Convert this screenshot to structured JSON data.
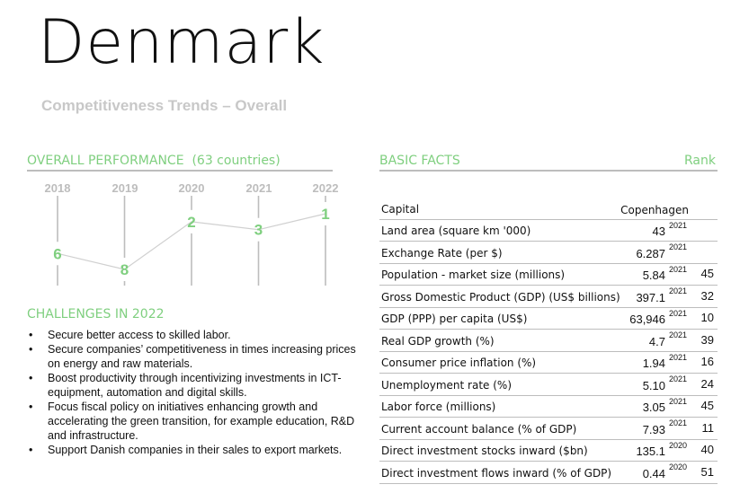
{
  "header": {
    "country": "Denmark",
    "subtitle": "Competitiveness Trends – Overall"
  },
  "overall": {
    "title": "OVERALL PERFORMANCE  (63 countries)"
  },
  "chart_data": {
    "type": "line",
    "x": [
      "2018",
      "2019",
      "2020",
      "2021",
      "2022"
    ],
    "series": [
      {
        "values": [
          6,
          8,
          2,
          3,
          1
        ]
      }
    ],
    "y_scale": "rank (1 at top, inverted)",
    "grid": "vertical lines per year",
    "color": "#7fcf7f"
  },
  "challenges": {
    "title": "CHALLENGES IN 2022",
    "items": [
      "Secure better access to skilled labor.",
      "Secure companies’ competitiveness in times increasing prices on energy and raw materials.",
      "Boost productivity through incentivizing investments in ICT-equipment, automation and digital skills.",
      "Focus fiscal policy on initiatives enhancing growth and accelerating the green transition, for example education, R&D and infrastructure.",
      "Support Danish companies in their sales to export markets."
    ]
  },
  "basic_facts": {
    "title": "BASIC FACTS",
    "rank_header": "Rank",
    "rows": [
      {
        "label": "Capital",
        "value": "Copenhagen",
        "year": "",
        "rank": ""
      },
      {
        "label": "Land area (square km '000)",
        "value": "43",
        "year": "2021",
        "rank": ""
      },
      {
        "label": "Exchange Rate (per $)",
        "value": "6.287",
        "year": "2021",
        "rank": ""
      },
      {
        "label": "Population - market size (millions)",
        "value": "5.84",
        "year": "2021",
        "rank": "45"
      },
      {
        "label": "Gross Domestic Product (GDP) (US$ billions)",
        "value": "397.1",
        "year": "2021",
        "rank": "32"
      },
      {
        "label": "GDP (PPP) per capita (US$)",
        "value": "63,946",
        "year": "2021",
        "rank": "10"
      },
      {
        "label": "Real GDP growth (%)",
        "value": "4.7",
        "year": "2021",
        "rank": "39"
      },
      {
        "label": "Consumer price inflation (%)",
        "value": "1.94",
        "year": "2021",
        "rank": "16"
      },
      {
        "label": "Unemployment rate (%)",
        "value": "5.10",
        "year": "2021",
        "rank": "24"
      },
      {
        "label": "Labor force (millions)",
        "value": "3.05",
        "year": "2021",
        "rank": "45"
      },
      {
        "label": "Current account balance (% of GDP)",
        "value": "7.93",
        "year": "2021",
        "rank": "11"
      },
      {
        "label": "Direct investment stocks inward ($bn)",
        "value": "135.1",
        "year": "2020",
        "rank": "40"
      },
      {
        "label": "Direct investment flows inward (% of GDP)",
        "value": "0.44",
        "year": "2020",
        "rank": "51"
      }
    ]
  }
}
